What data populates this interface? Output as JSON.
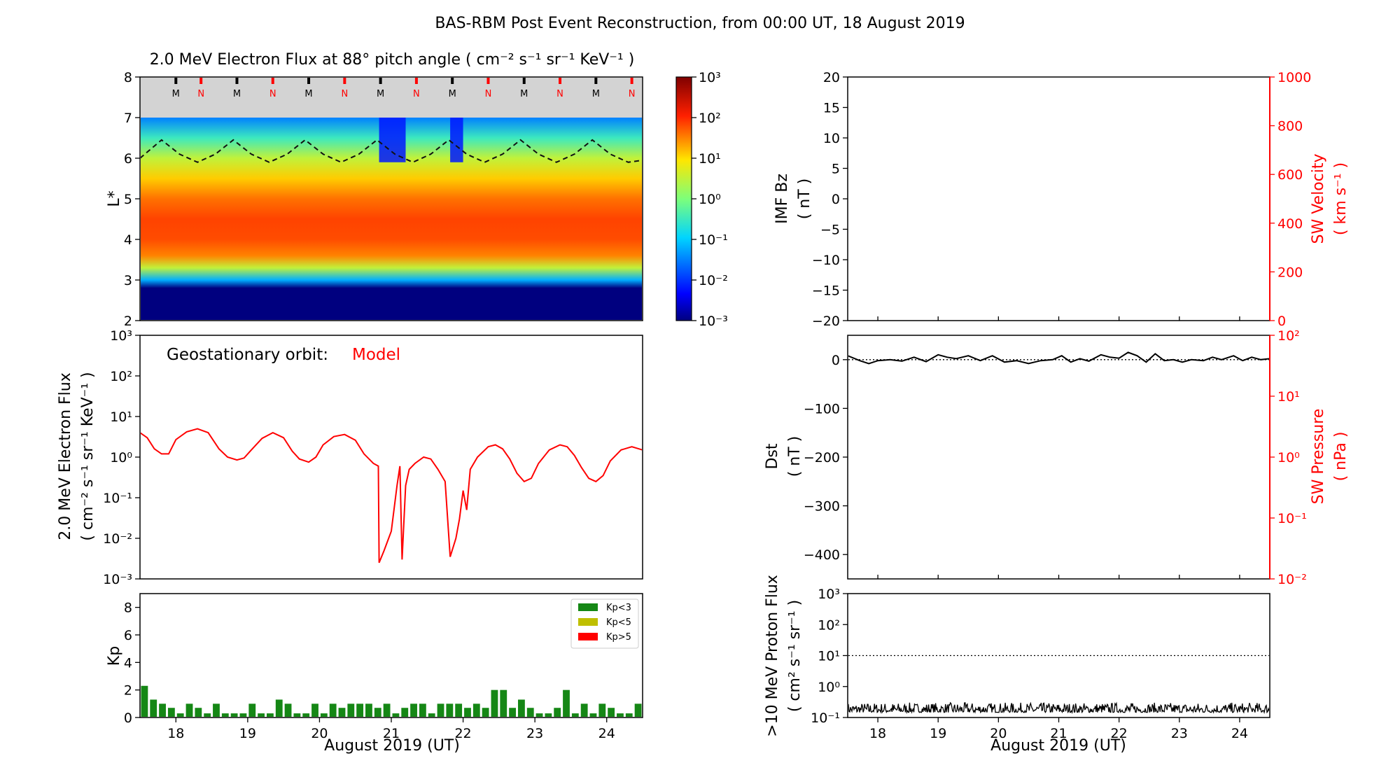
{
  "figure": {
    "title": "BAS-RBM Post Event Reconstruction, from 00:00 UT, 18 August 2019"
  },
  "chart_data": [
    {
      "id": "lstar-spectrogram",
      "type": "heatmap",
      "title": "2.0 MeV Electron Flux at 88° pitch angle ( cm⁻² s⁻¹ sr⁻¹ KeV⁻¹ )",
      "ylabel": "L*",
      "ylim": [
        2,
        8
      ],
      "yticks": [
        2,
        3,
        4,
        5,
        6,
        7,
        8
      ],
      "xlim": [
        17.5,
        24.5
      ],
      "colorbar": {
        "scale": "log",
        "range": [
          0.001,
          1000
        ],
        "ticks": [
          "10⁻³",
          "10⁻²",
          "10⁻¹",
          "10⁰",
          "10¹",
          "10²",
          "10³"
        ]
      },
      "flux_profile_by_lstar": [
        {
          "l": 2.0,
          "log_flux": -3.0
        },
        {
          "l": 2.8,
          "log_flux": -3.0
        },
        {
          "l": 3.0,
          "log_flux": -1.2
        },
        {
          "l": 3.3,
          "log_flux": 0.5
        },
        {
          "l": 3.6,
          "log_flux": 1.5
        },
        {
          "l": 4.0,
          "log_flux": 1.8
        },
        {
          "l": 4.5,
          "log_flux": 1.85
        },
        {
          "l": 5.0,
          "log_flux": 1.6
        },
        {
          "l": 5.5,
          "log_flux": 1.1
        },
        {
          "l": 6.0,
          "log_flux": 0.5
        },
        {
          "l": 6.5,
          "log_flux": -0.5
        },
        {
          "l": 7.0,
          "log_flux": -1.5
        }
      ],
      "no_data_above_l": 7.0,
      "orbit_markers": [
        {
          "day": 18.0,
          "label": "M"
        },
        {
          "day": 18.35,
          "label": "N"
        },
        {
          "day": 18.85,
          "label": "M"
        },
        {
          "day": 19.35,
          "label": "N"
        },
        {
          "day": 19.85,
          "label": "M"
        },
        {
          "day": 20.35,
          "label": "N"
        },
        {
          "day": 20.85,
          "label": "M"
        },
        {
          "day": 21.35,
          "label": "N"
        },
        {
          "day": 21.85,
          "label": "M"
        },
        {
          "day": 22.35,
          "label": "N"
        },
        {
          "day": 22.85,
          "label": "M"
        },
        {
          "day": 23.35,
          "label": "N"
        },
        {
          "day": 23.85,
          "label": "M"
        },
        {
          "day": 24.35,
          "label": "N"
        }
      ],
      "geo_lstar_line": [
        {
          "day": 17.5,
          "l": 6.0
        },
        {
          "day": 17.8,
          "l": 6.45
        },
        {
          "day": 18.05,
          "l": 6.1
        },
        {
          "day": 18.3,
          "l": 5.9
        },
        {
          "day": 18.55,
          "l": 6.1
        },
        {
          "day": 18.8,
          "l": 6.45
        },
        {
          "day": 19.05,
          "l": 6.1
        },
        {
          "day": 19.3,
          "l": 5.9
        },
        {
          "day": 19.55,
          "l": 6.1
        },
        {
          "day": 19.8,
          "l": 6.45
        },
        {
          "day": 20.05,
          "l": 6.1
        },
        {
          "day": 20.3,
          "l": 5.9
        },
        {
          "day": 20.55,
          "l": 6.1
        },
        {
          "day": 20.8,
          "l": 6.45
        },
        {
          "day": 21.05,
          "l": 6.1
        },
        {
          "day": 21.3,
          "l": 5.9
        },
        {
          "day": 21.55,
          "l": 6.1
        },
        {
          "day": 21.8,
          "l": 6.45
        },
        {
          "day": 22.05,
          "l": 6.1
        },
        {
          "day": 22.3,
          "l": 5.9
        },
        {
          "day": 22.55,
          "l": 6.1
        },
        {
          "day": 22.8,
          "l": 6.45
        },
        {
          "day": 23.05,
          "l": 6.1
        },
        {
          "day": 23.3,
          "l": 5.9
        },
        {
          "day": 23.55,
          "l": 6.1
        },
        {
          "day": 23.8,
          "l": 6.45
        },
        {
          "day": 24.05,
          "l": 6.1
        },
        {
          "day": 24.3,
          "l": 5.9
        },
        {
          "day": 24.5,
          "l": 5.95
        }
      ],
      "dropout_intervals": [
        {
          "start": 20.83,
          "end": 21.2
        },
        {
          "start": 21.82,
          "end": 22.0
        }
      ]
    },
    {
      "id": "geo-flux",
      "type": "line",
      "annotation_label": "Geostationary orbit:",
      "annotation_value": "Model",
      "ylabel": "2.0 MeV Electron Flux",
      "ylabel_units": "( cm⁻² s⁻¹ sr⁻¹ KeV⁻¹ )",
      "yscale": "log",
      "ylim": [
        0.001,
        1000
      ],
      "yticks": [
        "10⁻³",
        "10⁻²",
        "10⁻¹",
        "10⁰",
        "10¹",
        "10²",
        "10³"
      ],
      "xlim": [
        17.5,
        24.5
      ],
      "series": [
        {
          "color": "#ff0000",
          "points": [
            [
              17.5,
              4.0
            ],
            [
              17.6,
              3.0
            ],
            [
              17.7,
              1.6
            ],
            [
              17.8,
              1.2
            ],
            [
              17.9,
              1.2
            ],
            [
              18.0,
              2.7
            ],
            [
              18.15,
              4.2
            ],
            [
              18.3,
              5.0
            ],
            [
              18.45,
              4.0
            ],
            [
              18.6,
              1.6
            ],
            [
              18.72,
              1.0
            ],
            [
              18.85,
              0.85
            ],
            [
              18.95,
              0.95
            ],
            [
              19.05,
              1.5
            ],
            [
              19.2,
              2.9
            ],
            [
              19.35,
              4.0
            ],
            [
              19.5,
              3.0
            ],
            [
              19.62,
              1.4
            ],
            [
              19.72,
              0.9
            ],
            [
              19.85,
              0.75
            ],
            [
              19.95,
              1.0
            ],
            [
              20.05,
              2.0
            ],
            [
              20.2,
              3.2
            ],
            [
              20.35,
              3.6
            ],
            [
              20.5,
              2.6
            ],
            [
              20.62,
              1.2
            ],
            [
              20.75,
              0.7
            ],
            [
              20.82,
              0.6
            ],
            [
              20.83,
              0.0025
            ],
            [
              20.9,
              0.005
            ],
            [
              21.0,
              0.015
            ],
            [
              21.08,
              0.2
            ],
            [
              21.12,
              0.6
            ],
            [
              21.15,
              0.003
            ],
            [
              21.2,
              0.2
            ],
            [
              21.25,
              0.5
            ],
            [
              21.33,
              0.7
            ],
            [
              21.45,
              1.0
            ],
            [
              21.55,
              0.9
            ],
            [
              21.65,
              0.5
            ],
            [
              21.75,
              0.25
            ],
            [
              21.82,
              0.0035
            ],
            [
              21.9,
              0.01
            ],
            [
              21.95,
              0.03
            ],
            [
              22.0,
              0.15
            ],
            [
              22.05,
              0.05
            ],
            [
              22.1,
              0.5
            ],
            [
              22.2,
              1.0
            ],
            [
              22.35,
              1.8
            ],
            [
              22.45,
              2.0
            ],
            [
              22.55,
              1.6
            ],
            [
              22.65,
              0.9
            ],
            [
              22.75,
              0.4
            ],
            [
              22.85,
              0.25
            ],
            [
              22.95,
              0.3
            ],
            [
              23.05,
              0.7
            ],
            [
              23.2,
              1.5
            ],
            [
              23.35,
              2.0
            ],
            [
              23.45,
              1.8
            ],
            [
              23.55,
              1.1
            ],
            [
              23.65,
              0.55
            ],
            [
              23.75,
              0.3
            ],
            [
              23.85,
              0.25
            ],
            [
              23.95,
              0.35
            ],
            [
              24.05,
              0.8
            ],
            [
              24.2,
              1.5
            ],
            [
              24.35,
              1.8
            ],
            [
              24.5,
              1.5
            ]
          ]
        }
      ]
    },
    {
      "id": "kp-index",
      "type": "bar",
      "ylabel": "Kp",
      "ylim": [
        0,
        9
      ],
      "yticks": [
        0,
        2,
        4,
        6,
        8
      ],
      "xlim": [
        17.5,
        24.5
      ],
      "xticks": [
        "18",
        "19",
        "20",
        "21",
        "22",
        "23",
        "24"
      ],
      "xlabel": "August 2019 (UT)",
      "bar_width_days": 0.125,
      "start_day": 17.5,
      "values": [
        2.3,
        1.3,
        1.0,
        0.7,
        0.3,
        1.0,
        0.7,
        0.3,
        1.0,
        0.3,
        0.3,
        0.3,
        1.0,
        0.3,
        0.3,
        1.3,
        1.0,
        0.3,
        0.3,
        1.0,
        0.3,
        1.0,
        0.7,
        1.0,
        1.0,
        1.0,
        0.7,
        1.0,
        0.3,
        0.7,
        1.0,
        1.0,
        0.3,
        1.0,
        1.0,
        1.0,
        0.7,
        1.0,
        0.7,
        2.0,
        2.0,
        0.7,
        1.3,
        0.7,
        0.3,
        0.3,
        0.7,
        2.0,
        0.3,
        1.0,
        0.3,
        1.0,
        0.7,
        0.3,
        0.3,
        1.0
      ],
      "legend": [
        {
          "label": "Kp<3",
          "color": "#158715"
        },
        {
          "label": "Kp<5",
          "color": "#bfbf00"
        },
        {
          "label": "Kp>5",
          "color": "#ff0000"
        }
      ],
      "legend_position": "top-right"
    },
    {
      "id": "imf-sw",
      "type": "line",
      "ylabel": "IMF Bz",
      "ylabel_units": "( nT )",
      "ylim": [
        -20,
        20
      ],
      "yticks": [
        "−20",
        "−15",
        "−10",
        "−5",
        "0",
        "5",
        "10",
        "15",
        "20"
      ],
      "y2label": "SW Velocity",
      "y2label_units": "( km s⁻¹ )",
      "y2lim": [
        0,
        1000
      ],
      "y2ticks": [
        "0",
        "200",
        "400",
        "600",
        "800",
        "1000"
      ],
      "xlim": [
        17.5,
        24.5
      ],
      "series": []
    },
    {
      "id": "dst-pressure",
      "type": "line",
      "ylabel": "Dst",
      "ylabel_units": "( nT )",
      "ylim": [
        -450,
        50
      ],
      "yticks": [
        "−400",
        "−300",
        "−200",
        "−100",
        "0"
      ],
      "y2label": "SW Pressure",
      "y2label_units": "( nPa )",
      "y2scale": "log",
      "y2lim": [
        0.01,
        100
      ],
      "y2ticks": [
        "10⁻²",
        "10⁻¹",
        "10⁰",
        "10¹",
        "10²"
      ],
      "xlim": [
        17.5,
        24.5
      ],
      "series": [
        {
          "color": "#000000",
          "points": [
            [
              17.5,
              8
            ],
            [
              17.7,
              -2
            ],
            [
              17.85,
              -8
            ],
            [
              18.0,
              -2
            ],
            [
              18.2,
              0
            ],
            [
              18.4,
              -3
            ],
            [
              18.6,
              5
            ],
            [
              18.8,
              -4
            ],
            [
              19.0,
              10
            ],
            [
              19.15,
              5
            ],
            [
              19.3,
              2
            ],
            [
              19.5,
              8
            ],
            [
              19.7,
              -2
            ],
            [
              19.9,
              8
            ],
            [
              20.1,
              -5
            ],
            [
              20.3,
              -2
            ],
            [
              20.5,
              -8
            ],
            [
              20.7,
              -2
            ],
            [
              20.9,
              0
            ],
            [
              21.05,
              8
            ],
            [
              21.2,
              -5
            ],
            [
              21.35,
              2
            ],
            [
              21.5,
              -3
            ],
            [
              21.7,
              10
            ],
            [
              21.85,
              5
            ],
            [
              22.0,
              3
            ],
            [
              22.15,
              15
            ],
            [
              22.3,
              8
            ],
            [
              22.45,
              -5
            ],
            [
              22.6,
              12
            ],
            [
              22.75,
              -2
            ],
            [
              22.9,
              0
            ],
            [
              23.05,
              -5
            ],
            [
              23.2,
              0
            ],
            [
              23.4,
              -2
            ],
            [
              23.55,
              5
            ],
            [
              23.7,
              0
            ],
            [
              23.9,
              8
            ],
            [
              24.05,
              -2
            ],
            [
              24.2,
              5
            ],
            [
              24.35,
              0
            ],
            [
              24.5,
              2
            ]
          ]
        }
      ]
    },
    {
      "id": "proton-flux",
      "type": "line",
      "ylabel": ">10 MeV Proton Flux",
      "ylabel_units": "( cm² s⁻¹ sr⁻¹ )",
      "yscale": "log",
      "ylim": [
        0.1,
        1000
      ],
      "yticks": [
        "10⁻¹",
        "10⁰",
        "10¹",
        "10²",
        "10³"
      ],
      "xlim": [
        17.5,
        24.5
      ],
      "xticks": [
        "18",
        "19",
        "20",
        "21",
        "22",
        "23",
        "24"
      ],
      "xlabel": "August 2019 (UT)",
      "threshold": 10,
      "noise_range": [
        0.12,
        0.45
      ]
    }
  ]
}
